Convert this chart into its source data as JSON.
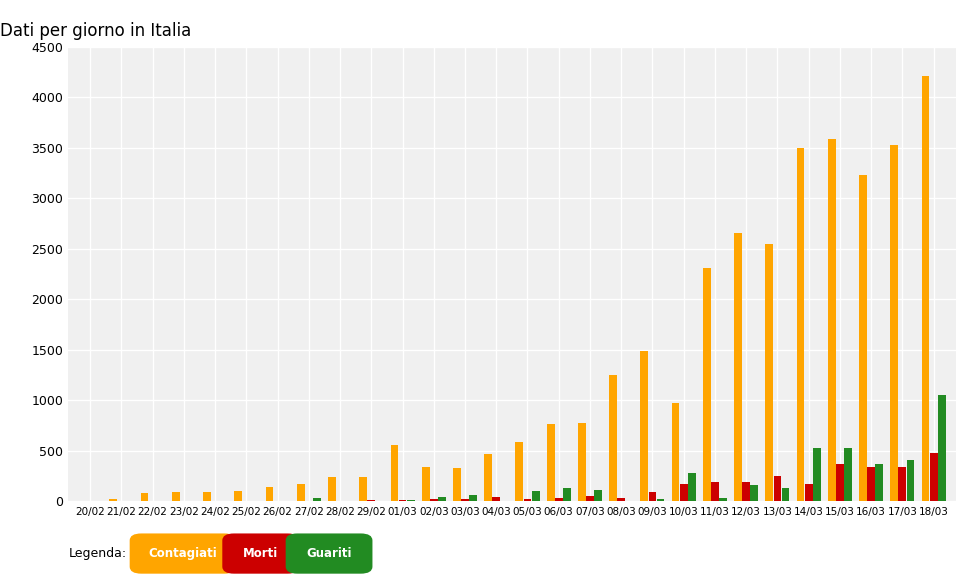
{
  "title": "Dati per giorno in Italia",
  "dates": [
    "20/02",
    "21/02",
    "22/02",
    "23/02",
    "24/02",
    "25/02",
    "26/02",
    "27/02",
    "28/02",
    "29/02",
    "01/03",
    "02/03",
    "03/03",
    "04/03",
    "05/03",
    "06/03",
    "07/03",
    "08/03",
    "09/03",
    "10/03",
    "11/03",
    "12/03",
    "13/03",
    "14/03",
    "15/03",
    "16/03",
    "17/03",
    "18/03"
  ],
  "contagiati": [
    0,
    20,
    80,
    95,
    95,
    100,
    145,
    175,
    240,
    240,
    560,
    340,
    330,
    470,
    587,
    769,
    778,
    1247,
    1492,
    977,
    2313,
    2651,
    2547,
    3497,
    3590,
    3233,
    3526,
    4207
  ],
  "morti": [
    0,
    0,
    0,
    0,
    0,
    0,
    0,
    0,
    0,
    10,
    10,
    27,
    28,
    41,
    25,
    36,
    49,
    36,
    97,
    168,
    196,
    189,
    250,
    175,
    368,
    345,
    345,
    475
  ],
  "guariti": [
    0,
    0,
    0,
    0,
    0,
    0,
    0,
    30,
    0,
    0,
    10,
    40,
    66,
    0,
    100,
    130,
    110,
    0,
    20,
    280,
    30,
    160,
    130,
    527,
    527,
    369,
    414,
    1050
  ],
  "ylim": [
    0,
    4500
  ],
  "yticks": [
    0,
    500,
    1000,
    1500,
    2000,
    2500,
    3000,
    3500,
    4000,
    4500
  ],
  "color_contagiati": "#FFA500",
  "color_morti": "#CC0000",
  "color_guariti": "#228B22",
  "background_color": "#f0f0f0",
  "legend_text": "Legenda:",
  "legend_contagiati": "Contagiati",
  "legend_morti": "Morti",
  "legend_guariti": "Guariti",
  "figwidth": 9.75,
  "figheight": 5.83,
  "dpi": 100
}
